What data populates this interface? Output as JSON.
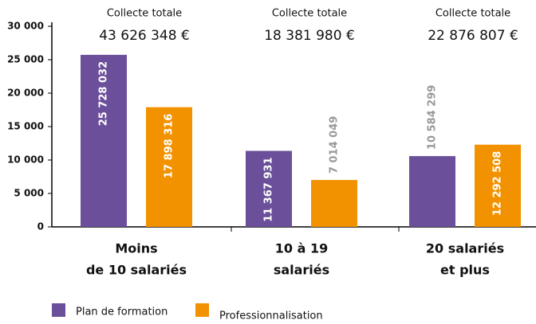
{
  "chart_data": {
    "type": "bar",
    "categories": [
      [
        "Moins",
        "de 10 salariés"
      ],
      [
        "10 à 19",
        "salariés"
      ],
      [
        "20 salariés",
        "et plus"
      ]
    ],
    "annotations": [
      {
        "label": "Collecte totale",
        "value": "43 626 348 €"
      },
      {
        "label": "Collecte totale",
        "value": "18 381 980 €"
      },
      {
        "label": "Collecte totale",
        "value": "22 876 807 €"
      }
    ],
    "series": [
      {
        "name": "Plan de formation",
        "color": "#6b4f9a",
        "values": [
          25728.032,
          11367.931,
          10584.299
        ],
        "value_labels": [
          "25 728 032",
          "11 367 931",
          "10 584 299"
        ]
      },
      {
        "name": "Professionnalisation",
        "color": "#f39200",
        "values": [
          17898.316,
          7014.049,
          12292.508
        ],
        "value_labels": [
          "17 898 316",
          "7 014 049",
          "12 292 508"
        ]
      }
    ],
    "ylim": [
      0,
      30000
    ],
    "yticks": [
      0,
      {
        "value": 5000,
        "label": "5 000"
      },
      {
        "value": 10000,
        "label": "10 000"
      },
      {
        "value": 15000,
        "label": "15 000"
      },
      {
        "value": 20000,
        "label": "20 000"
      },
      {
        "value": 25000,
        "label": "25 000"
      },
      {
        "value": 30000,
        "label": "30 000"
      }
    ],
    "legend": "bottom"
  }
}
